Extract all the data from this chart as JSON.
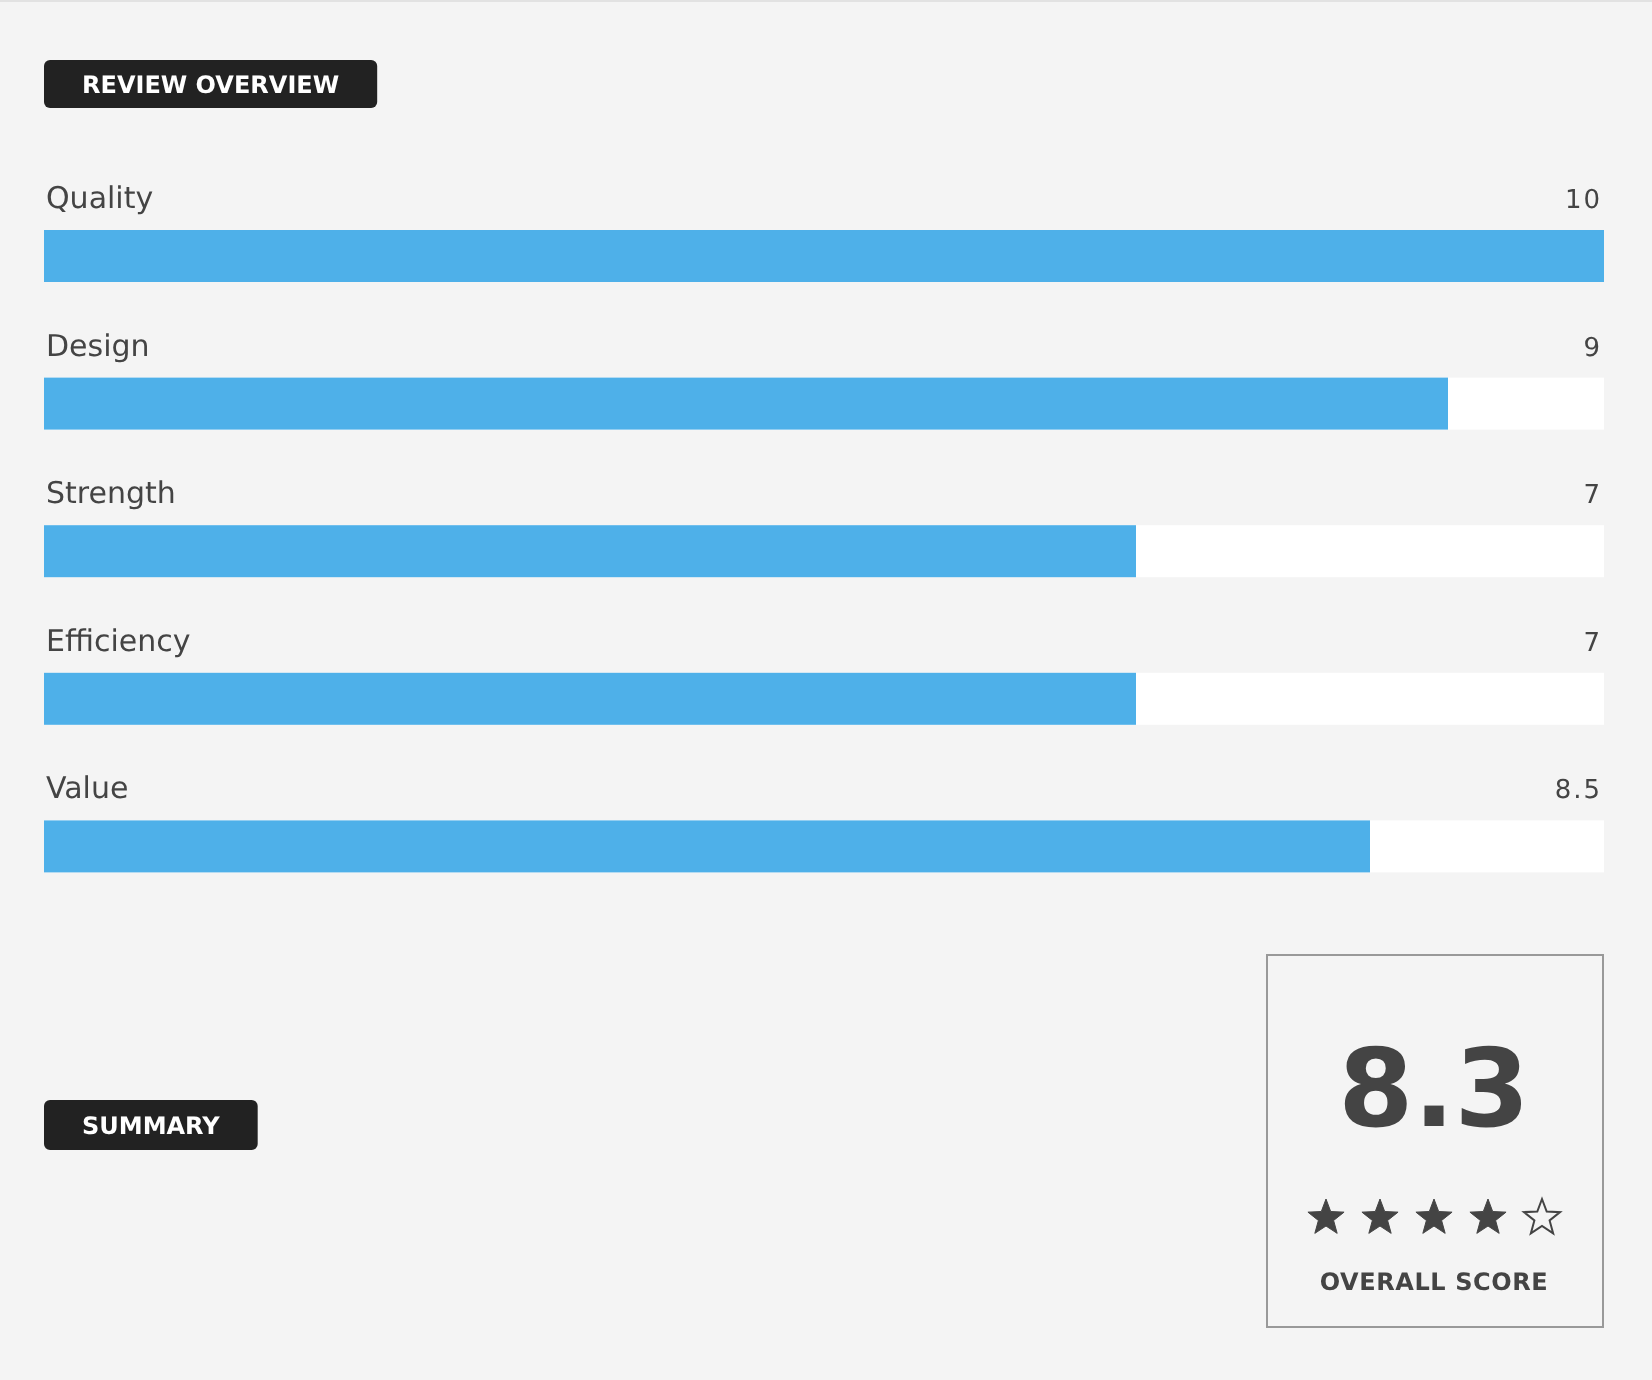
{
  "chart_data": {
    "type": "bar",
    "orientation": "horizontal",
    "title": "REVIEW OVERVIEW",
    "categories": [
      "Quality",
      "Design",
      "Strength",
      "Efficiency",
      "Value"
    ],
    "values": [
      10,
      9,
      7,
      7,
      8.5
    ],
    "color": "#4eb0e9",
    "xlim": [
      0,
      10
    ],
    "data_labels": true,
    "tick_labels": "y",
    "annotations": [
      "SUMMARY",
      "8.3",
      "OVERALL SCORE"
    ]
  }
}
